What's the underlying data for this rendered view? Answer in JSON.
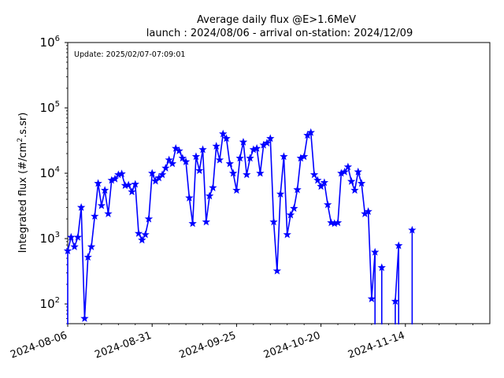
{
  "chart_data": {
    "type": "line",
    "title_line1": "Average daily flux @E>1.6MeV",
    "title_line2": "launch : 2024/08/06 - arrival on-station: 2024/12/09",
    "annotation": "Update: 2025/02/07-07:09:01",
    "xlabel": "",
    "ylabel_main": "Integrated flux (#/cm",
    "ylabel_sup": "2",
    "ylabel_tail": ".s.sr)",
    "yscale": "log",
    "ylim": [
      50,
      1000000
    ],
    "xlim": [
      "2024-08-06",
      "2024-12-09"
    ],
    "x_ticks": [
      "2024-08-06",
      "2024-08-31",
      "2024-09-25",
      "2024-10-20",
      "2024-11-14"
    ],
    "y_ticks": [
      {
        "base": "10",
        "exp": "2",
        "value": 100
      },
      {
        "base": "10",
        "exp": "3",
        "value": 1000
      },
      {
        "base": "10",
        "exp": "4",
        "value": 10000
      },
      {
        "base": "10",
        "exp": "5",
        "value": 100000
      },
      {
        "base": "10",
        "exp": "6",
        "value": 1000000
      }
    ],
    "grid": false,
    "line_color": "#0000ff",
    "marker": "star",
    "series": [
      {
        "x": [
          "2024-08-06",
          "2024-08-07",
          "2024-08-08",
          "2024-08-09",
          "2024-08-10",
          "2024-08-11",
          "2024-08-12",
          "2024-08-13",
          "2024-08-14",
          "2024-08-15",
          "2024-08-16",
          "2024-08-17",
          "2024-08-18",
          "2024-08-19",
          "2024-08-20",
          "2024-08-21",
          "2024-08-22",
          "2024-08-23",
          "2024-08-24",
          "2024-08-25",
          "2024-08-26",
          "2024-08-27",
          "2024-08-28",
          "2024-08-29",
          "2024-08-30",
          "2024-08-31",
          "2024-09-01",
          "2024-09-02",
          "2024-09-03",
          "2024-09-04",
          "2024-09-05",
          "2024-09-06",
          "2024-09-07",
          "2024-09-08",
          "2024-09-09",
          "2024-09-10",
          "2024-09-11",
          "2024-09-12",
          "2024-09-13",
          "2024-09-14",
          "2024-09-15",
          "2024-09-16",
          "2024-09-17",
          "2024-09-18",
          "2024-09-19",
          "2024-09-20",
          "2024-09-21",
          "2024-09-22",
          "2024-09-23",
          "2024-09-24",
          "2024-09-25",
          "2024-09-26",
          "2024-09-27",
          "2024-09-28",
          "2024-09-29",
          "2024-09-30",
          "2024-10-01",
          "2024-10-02",
          "2024-10-03",
          "2024-10-04",
          "2024-10-05",
          "2024-10-06",
          "2024-10-07",
          "2024-10-08",
          "2024-10-09",
          "2024-10-10",
          "2024-10-11",
          "2024-10-12",
          "2024-10-13",
          "2024-10-14",
          "2024-10-15",
          "2024-10-16",
          "2024-10-17",
          "2024-10-18",
          "2024-10-19",
          "2024-10-20",
          "2024-10-21",
          "2024-10-22",
          "2024-10-23",
          "2024-10-24",
          "2024-10-25",
          "2024-10-26",
          "2024-10-27",
          "2024-10-28",
          "2024-10-29",
          "2024-10-30",
          "2024-10-31",
          "2024-11-01",
          "2024-11-02",
          "2024-11-03",
          "2024-11-04",
          "2024-11-05",
          "2024-11-06",
          "2024-11-07",
          "2024-11-08",
          "2024-11-09",
          "2024-11-10",
          "2024-11-11",
          "2024-11-12",
          "2024-11-13",
          "2024-11-14",
          "2024-11-15",
          "2024-11-16",
          "2024-11-17",
          "2024-11-18",
          "2024-11-19",
          "2024-11-20",
          "2024-11-21",
          "2024-11-22",
          "2024-11-23",
          "2024-11-24",
          "2024-11-25",
          "2024-11-26"
        ],
        "y": [
          650,
          1050,
          750,
          1050,
          3000,
          60,
          520,
          750,
          2200,
          7000,
          3200,
          5500,
          2400,
          7800,
          8200,
          9500,
          9800,
          6500,
          6600,
          5200,
          6800,
          1200,
          950,
          1150,
          2000,
          10000,
          7600,
          8500,
          9500,
          12000,
          16000,
          14000,
          24000,
          22000,
          17000,
          15000,
          4200,
          1700,
          18000,
          11000,
          23000,
          1800,
          4500,
          6000,
          26000,
          16000,
          40000,
          34000,
          14000,
          10000,
          5500,
          17000,
          30000,
          9500,
          17000,
          23000,
          24000,
          10000,
          27000,
          29000,
          34000,
          1800,
          320,
          4800,
          18000,
          1150,
          2300,
          2900,
          5600,
          17000,
          18000,
          38000,
          42000,
          9500,
          7800,
          6300,
          7200,
          3300,
          1750,
          1700,
          1750,
          10000,
          10500,
          12500,
          7500,
          5500,
          10500,
          7000,
          2400,
          2600,
          120,
          620,
          null,
          360,
          null,
          null,
          null,
          110,
          780,
          null,
          null,
          null,
          1350,
          null,
          null,
          null,
          null,
          null,
          null,
          null,
          null,
          null,
          null
        ]
      }
    ]
  }
}
